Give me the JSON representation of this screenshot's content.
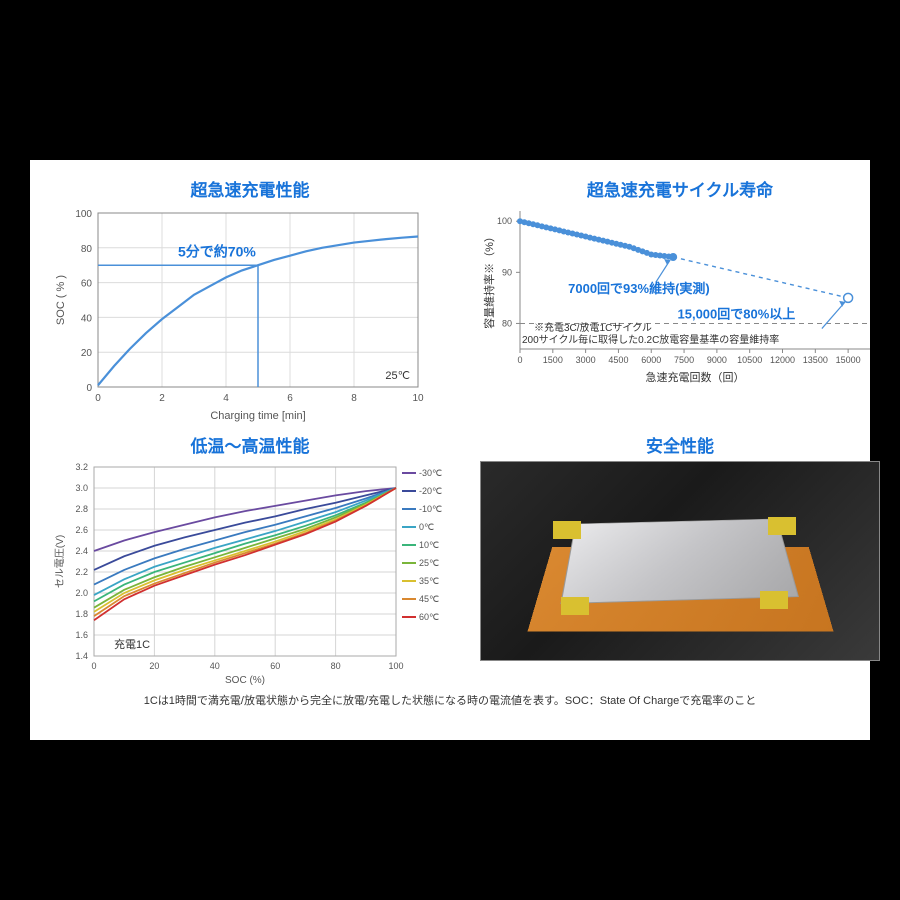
{
  "chart1": {
    "title": "超急速充電性能",
    "type": "line",
    "xlabel": "Charging time [min]",
    "ylabel": "SOC ( % )",
    "xlim": [
      0,
      10
    ],
    "xtick_step": 2,
    "ylim": [
      0,
      100
    ],
    "ytick_step": 20,
    "line_color": "#4a90d9",
    "data_x": [
      0,
      0.5,
      1,
      1.5,
      2,
      2.5,
      3,
      3.5,
      4,
      4.5,
      5,
      5.5,
      6,
      6.5,
      7,
      7.5,
      8,
      8.5,
      9,
      9.5,
      10
    ],
    "data_y": [
      1,
      12,
      22,
      31,
      39,
      46,
      53,
      58,
      63,
      67,
      70,
      73,
      75.5,
      78,
      80,
      81.5,
      83,
      84,
      85,
      85.8,
      86.5
    ],
    "annotation": "5分で約70%",
    "annotation_color": "#1873d9",
    "ref_x": 5,
    "ref_y": 70,
    "corner_label": "25℃",
    "axis_color": "#888",
    "grid_color": "#dcdcdc",
    "label_fontsize": 11,
    "tick_fontsize": 10
  },
  "chart2": {
    "title": "超急速充電サイクル寿命",
    "type": "scatter",
    "xlabel": "急速充電回数（回）",
    "ylabel": "容量維持率※（%）",
    "xlim": [
      0,
      16000
    ],
    "xticks": [
      0,
      1500,
      3000,
      4500,
      6000,
      7500,
      9000,
      10500,
      12000,
      13500,
      15000
    ],
    "ylim": [
      75,
      102
    ],
    "yticks": [
      80,
      90,
      100
    ],
    "marker_color": "#4a90d9",
    "marker_size": 3,
    "measured_x": [
      0,
      200,
      400,
      600,
      800,
      1000,
      1200,
      1400,
      1600,
      1800,
      2000,
      2200,
      2400,
      2600,
      2800,
      3000,
      3200,
      3400,
      3600,
      3800,
      4000,
      4200,
      4400,
      4600,
      4800,
      5000,
      5200,
      5400,
      5600,
      5800,
      6000,
      6200,
      6400,
      6600,
      6800,
      7000
    ],
    "measured_y": [
      100,
      99.8,
      99.6,
      99.4,
      99.2,
      99,
      98.8,
      98.6,
      98.4,
      98.2,
      98,
      97.8,
      97.6,
      97.4,
      97.2,
      97,
      96.8,
      96.6,
      96.4,
      96.2,
      96,
      95.8,
      95.6,
      95.4,
      95.2,
      95,
      94.7,
      94.4,
      94.1,
      93.8,
      93.5,
      93.4,
      93.3,
      93.2,
      93.1,
      93
    ],
    "projected_end_x": 15000,
    "projected_end_y": 85,
    "ref_line_y": 80,
    "ref_line_color": "#888",
    "ann1": "7000回で93%維持(実測)",
    "ann2": "15,000回で80%以上",
    "note1": "※充電3C/放電1Cサイクル",
    "note2": "200サイクル毎に取得した0.2C放電容量基準の容量維持率",
    "annotation_color": "#1873d9",
    "label_fontsize": 11,
    "tick_fontsize": 9
  },
  "chart3": {
    "title": "低温～高温性能",
    "type": "line-multi",
    "xlabel": "SOC (%)",
    "ylabel": "セル電圧(V)",
    "xlim": [
      0,
      100
    ],
    "xtick_step": 20,
    "ylim": [
      1.4,
      3.2
    ],
    "ytick_step": 0.2,
    "corner_label": "充電1C",
    "grid_color": "#d5d5d5",
    "series": [
      {
        "label": "-30℃",
        "color": "#6a4aa0",
        "y": [
          2.4,
          2.5,
          2.58,
          2.65,
          2.72,
          2.78,
          2.83,
          2.88,
          2.93,
          2.97,
          3.0
        ]
      },
      {
        "label": "-20℃",
        "color": "#3a4a9a",
        "y": [
          2.22,
          2.35,
          2.45,
          2.53,
          2.6,
          2.67,
          2.73,
          2.8,
          2.86,
          2.93,
          3.0
        ]
      },
      {
        "label": "-10℃",
        "color": "#3a7abf",
        "y": [
          2.08,
          2.22,
          2.33,
          2.42,
          2.5,
          2.58,
          2.65,
          2.73,
          2.81,
          2.9,
          3.0
        ]
      },
      {
        "label": "0℃",
        "color": "#3aa5c5",
        "y": [
          1.98,
          2.13,
          2.25,
          2.34,
          2.43,
          2.51,
          2.59,
          2.68,
          2.77,
          2.88,
          3.0
        ]
      },
      {
        "label": "10℃",
        "color": "#3ab57a",
        "y": [
          1.92,
          2.08,
          2.2,
          2.29,
          2.38,
          2.47,
          2.55,
          2.64,
          2.74,
          2.86,
          3.0
        ]
      },
      {
        "label": "25℃",
        "color": "#7ab53a",
        "y": [
          1.86,
          2.03,
          2.15,
          2.25,
          2.34,
          2.43,
          2.52,
          2.61,
          2.72,
          2.85,
          3.0
        ]
      },
      {
        "label": "35℃",
        "color": "#d9c030",
        "y": [
          1.82,
          2.0,
          2.12,
          2.22,
          2.31,
          2.4,
          2.49,
          2.59,
          2.7,
          2.84,
          3.0
        ]
      },
      {
        "label": "45℃",
        "color": "#d98830",
        "y": [
          1.78,
          1.97,
          2.09,
          2.19,
          2.29,
          2.38,
          2.47,
          2.57,
          2.69,
          2.83,
          3.0
        ]
      },
      {
        "label": "60℃",
        "color": "#d13030",
        "y": [
          1.74,
          1.94,
          2.07,
          2.17,
          2.27,
          2.36,
          2.46,
          2.56,
          2.68,
          2.83,
          3.0
        ]
      }
    ],
    "x_points": [
      0,
      10,
      20,
      30,
      40,
      50,
      60,
      70,
      80,
      90,
      100
    ],
    "label_fontsize": 10,
    "tick_fontsize": 9,
    "legend_fontsize": 9
  },
  "chart4": {
    "title": "安全性能",
    "type": "photo"
  },
  "footnote": "1Cは1時間で満充電/放電状態から完全に放電/充電した状態になる時の電流値を表す。SOC：State Of Chargeで充電率のこと"
}
